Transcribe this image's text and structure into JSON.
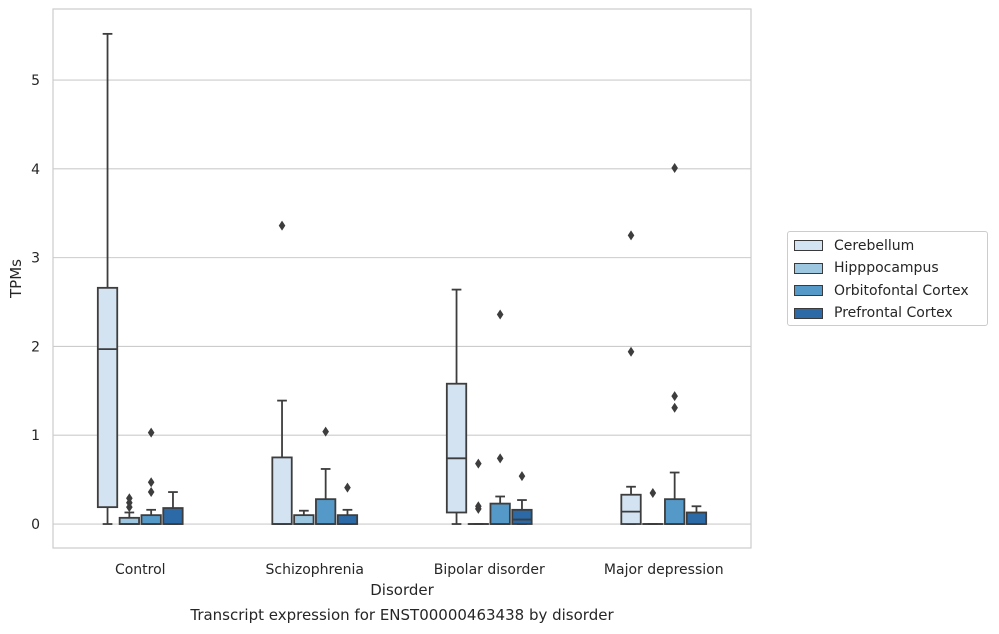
{
  "chart_data": {
    "type": "box",
    "title": "",
    "caption": "Transcript expression for ENST00000463438 by disorder",
    "xlabel": "Disorder",
    "ylabel": "TPMs",
    "ylim": [
      -0.27,
      5.8
    ],
    "yticks": [
      0,
      1,
      2,
      3,
      4,
      5
    ],
    "grid": "horizontal",
    "legend_position": "right",
    "categories": [
      "Control",
      "Schizophrenia",
      "Bipolar disorder",
      "Major depression"
    ],
    "series": [
      {
        "name": "Cerebellum",
        "color": "#d4e3f1",
        "boxes": [
          {
            "q1": 0.19,
            "median": 1.97,
            "q3": 2.66,
            "whislo": 0.0,
            "whishi": 5.52,
            "fliers": []
          },
          {
            "q1": 0.0,
            "median": 0.0,
            "q3": 0.75,
            "whislo": 0.0,
            "whishi": 1.39,
            "fliers": [
              3.36
            ]
          },
          {
            "q1": 0.13,
            "median": 0.74,
            "q3": 1.58,
            "whislo": 0.0,
            "whishi": 2.64,
            "fliers": []
          },
          {
            "q1": 0.0,
            "median": 0.14,
            "q3": 0.33,
            "whislo": 0.0,
            "whishi": 0.42,
            "fliers": [
              1.94,
              3.25
            ]
          }
        ]
      },
      {
        "name": "Hipppocampus",
        "color": "#9dc6e0",
        "boxes": [
          {
            "q1": 0.0,
            "median": 0.0,
            "q3": 0.07,
            "whislo": 0.0,
            "whishi": 0.13,
            "fliers": [
              0.19,
              0.24,
              0.29
            ]
          },
          {
            "q1": 0.0,
            "median": 0.0,
            "q3": 0.1,
            "whislo": 0.0,
            "whishi": 0.15,
            "fliers": []
          },
          {
            "q1": 0.0,
            "median": 0.0,
            "q3": 0.0,
            "whislo": 0.0,
            "whishi": 0.0,
            "fliers": [
              0.17,
              0.2,
              0.68
            ]
          },
          {
            "q1": 0.0,
            "median": 0.0,
            "q3": 0.0,
            "whislo": 0.0,
            "whishi": 0.0,
            "fliers": [
              0.35
            ]
          }
        ]
      },
      {
        "name": "Orbitofontal Cortex",
        "color": "#5599c8",
        "boxes": [
          {
            "q1": 0.0,
            "median": 0.0,
            "q3": 0.1,
            "whislo": 0.0,
            "whishi": 0.16,
            "fliers": [
              0.36,
              0.47,
              1.03
            ]
          },
          {
            "q1": 0.0,
            "median": 0.0,
            "q3": 0.28,
            "whislo": 0.0,
            "whishi": 0.62,
            "fliers": [
              1.04
            ]
          },
          {
            "q1": 0.0,
            "median": 0.0,
            "q3": 0.23,
            "whislo": 0.0,
            "whishi": 0.31,
            "fliers": [
              0.74,
              2.36
            ]
          },
          {
            "q1": 0.0,
            "median": 0.0,
            "q3": 0.28,
            "whislo": 0.0,
            "whishi": 0.58,
            "fliers": [
              1.31,
              1.44,
              4.01
            ]
          }
        ]
      },
      {
        "name": "Prefrontal Cortex",
        "color": "#2b6aa6",
        "boxes": [
          {
            "q1": 0.0,
            "median": 0.0,
            "q3": 0.18,
            "whislo": 0.0,
            "whishi": 0.36,
            "fliers": []
          },
          {
            "q1": 0.0,
            "median": 0.0,
            "q3": 0.1,
            "whislo": 0.0,
            "whishi": 0.16,
            "fliers": [
              0.41
            ]
          },
          {
            "q1": 0.0,
            "median": 0.05,
            "q3": 0.16,
            "whislo": 0.0,
            "whishi": 0.27,
            "fliers": [
              0.54
            ]
          },
          {
            "q1": 0.0,
            "median": 0.0,
            "q3": 0.13,
            "whislo": 0.0,
            "whishi": 0.2,
            "fliers": []
          }
        ]
      }
    ]
  }
}
